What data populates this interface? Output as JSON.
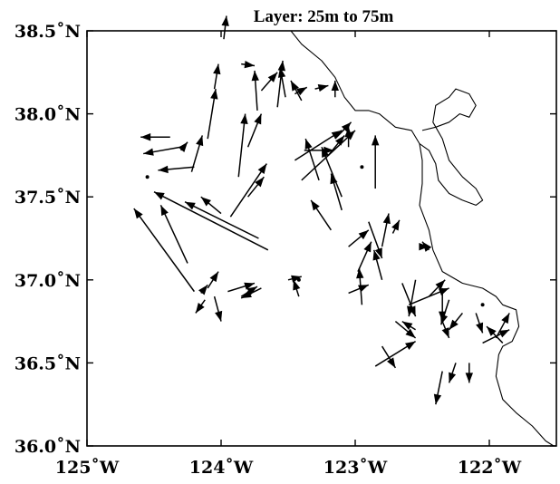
{
  "title": "Layer:  25m to 75m",
  "x_axis": {
    "range": [
      -125.0,
      -121.5
    ],
    "ticks": [
      {
        "value": -125,
        "label": "125˚W"
      },
      {
        "value": -124,
        "label": "124˚W"
      },
      {
        "value": -123,
        "label": "123˚W"
      },
      {
        "value": -122,
        "label": "122˚W"
      }
    ]
  },
  "y_axis": {
    "range": [
      36.0,
      38.5
    ],
    "ticks": [
      {
        "value": 36.0,
        "label": "36.0˚N"
      },
      {
        "value": 36.5,
        "label": "36.5˚N"
      },
      {
        "value": 37.0,
        "label": "37.0˚N"
      },
      {
        "value": 37.5,
        "label": "37.5˚N"
      },
      {
        "value": 38.0,
        "label": "38.0˚N"
      },
      {
        "value": 38.5,
        "label": "38.5˚N"
      }
    ]
  },
  "current_vectors": [
    {
      "lon": -123.98,
      "lat": 38.45,
      "u": 0.02,
      "v": 0.14
    },
    {
      "lon": -123.85,
      "lat": 38.3,
      "u": 0.1,
      "v": -0.01
    },
    {
      "lon": -123.7,
      "lat": 38.14,
      "u": 0.12,
      "v": 0.11
    },
    {
      "lon": -124.05,
      "lat": 38.15,
      "u": 0.03,
      "v": 0.15
    },
    {
      "lon": -123.73,
      "lat": 38.02,
      "u": -0.02,
      "v": 0.24
    },
    {
      "lon": -123.58,
      "lat": 38.04,
      "u": 0.04,
      "v": 0.28
    },
    {
      "lon": -123.52,
      "lat": 38.1,
      "u": -0.04,
      "v": 0.18
    },
    {
      "lon": -123.45,
      "lat": 38.12,
      "u": 0.09,
      "v": 0.04
    },
    {
      "lon": -123.4,
      "lat": 38.08,
      "u": -0.08,
      "v": 0.12
    },
    {
      "lon": -123.3,
      "lat": 38.15,
      "u": 0.1,
      "v": 0.02
    },
    {
      "lon": -123.15,
      "lat": 38.1,
      "u": 0.0,
      "v": 0.1
    },
    {
      "lon": -123.87,
      "lat": 37.62,
      "u": 0.05,
      "v": 0.38
    },
    {
      "lon": -123.8,
      "lat": 37.8,
      "u": 0.1,
      "v": 0.2
    },
    {
      "lon": -124.1,
      "lat": 37.85,
      "u": 0.06,
      "v": 0.3
    },
    {
      "lon": -124.22,
      "lat": 37.65,
      "u": 0.08,
      "v": 0.22
    },
    {
      "lon": -124.3,
      "lat": 37.78,
      "u": 0.05,
      "v": 0.05
    },
    {
      "lon": -124.38,
      "lat": 37.86,
      "u": -0.22,
      "v": 0.0
    },
    {
      "lon": -124.3,
      "lat": 37.8,
      "u": -0.28,
      "v": -0.04
    },
    {
      "lon": -124.2,
      "lat": 37.68,
      "u": -0.27,
      "v": -0.02
    },
    {
      "lon": -123.93,
      "lat": 37.38,
      "u": 0.27,
      "v": 0.32
    },
    {
      "lon": -123.8,
      "lat": 37.5,
      "u": 0.12,
      "v": 0.12
    },
    {
      "lon": -123.4,
      "lat": 37.6,
      "u": 0.4,
      "v": 0.3
    },
    {
      "lon": -123.45,
      "lat": 37.72,
      "u": 0.35,
      "v": 0.18
    },
    {
      "lon": -123.38,
      "lat": 37.78,
      "u": 0.22,
      "v": 0.0
    },
    {
      "lon": -123.27,
      "lat": 37.6,
      "u": -0.1,
      "v": 0.25
    },
    {
      "lon": -123.2,
      "lat": 37.75,
      "u": 0.12,
      "v": 0.12
    },
    {
      "lon": -123.15,
      "lat": 37.85,
      "u": 0.12,
      "v": 0.1
    },
    {
      "lon": -123.05,
      "lat": 37.8,
      "u": 0.0,
      "v": 0.12
    },
    {
      "lon": -123.1,
      "lat": 37.5,
      "u": -0.15,
      "v": 0.3
    },
    {
      "lon": -122.85,
      "lat": 37.55,
      "u": 0.0,
      "v": 0.32
    },
    {
      "lon": -123.18,
      "lat": 37.3,
      "u": -0.15,
      "v": 0.18
    },
    {
      "lon": -123.1,
      "lat": 37.42,
      "u": -0.08,
      "v": 0.22
    },
    {
      "lon": -123.05,
      "lat": 37.2,
      "u": 0.15,
      "v": 0.1
    },
    {
      "lon": -123.65,
      "lat": 37.18,
      "u": -0.85,
      "v": 0.35
    },
    {
      "lon": -123.72,
      "lat": 37.25,
      "u": -0.55,
      "v": 0.22
    },
    {
      "lon": -124.0,
      "lat": 37.4,
      "u": -0.15,
      "v": 0.1
    },
    {
      "lon": -124.25,
      "lat": 37.1,
      "u": -0.2,
      "v": 0.35
    },
    {
      "lon": -124.2,
      "lat": 36.93,
      "u": -0.45,
      "v": 0.5
    },
    {
      "lon": -124.15,
      "lat": 36.92,
      "u": 0.05,
      "v": 0.05
    },
    {
      "lon": -124.1,
      "lat": 36.95,
      "u": 0.08,
      "v": 0.1
    },
    {
      "lon": -124.05,
      "lat": 36.9,
      "u": 0.05,
      "v": -0.15
    },
    {
      "lon": -124.12,
      "lat": 36.88,
      "u": -0.07,
      "v": -0.08
    },
    {
      "lon": -123.95,
      "lat": 36.93,
      "u": 0.2,
      "v": 0.05
    },
    {
      "lon": -123.85,
      "lat": 36.9,
      "u": 0.12,
      "v": 0.06
    },
    {
      "lon": -123.7,
      "lat": 36.95,
      "u": -0.15,
      "v": -0.06
    },
    {
      "lon": -123.5,
      "lat": 37.0,
      "u": 0.1,
      "v": 0.02
    },
    {
      "lon": -123.42,
      "lat": 36.9,
      "u": -0.04,
      "v": 0.1
    },
    {
      "lon": -122.9,
      "lat": 37.35,
      "u": 0.1,
      "v": -0.22
    },
    {
      "lon": -122.8,
      "lat": 37.2,
      "u": 0.05,
      "v": 0.2
    },
    {
      "lon": -122.72,
      "lat": 37.28,
      "u": 0.05,
      "v": 0.08
    },
    {
      "lon": -122.5,
      "lat": 37.2,
      "u": 0.05,
      "v": 0.0
    },
    {
      "lon": -122.45,
      "lat": 37.18,
      "u": -0.05,
      "v": 0.05
    },
    {
      "lon": -122.98,
      "lat": 37.05,
      "u": 0.1,
      "v": 0.18
    },
    {
      "lon": -122.8,
      "lat": 37.0,
      "u": -0.06,
      "v": 0.18
    },
    {
      "lon": -122.65,
      "lat": 36.98,
      "u": 0.1,
      "v": -0.2
    },
    {
      "lon": -122.55,
      "lat": 37.0,
      "u": -0.05,
      "v": -0.22
    },
    {
      "lon": -122.6,
      "lat": 36.85,
      "u": 0.3,
      "v": 0.1
    },
    {
      "lon": -122.45,
      "lat": 36.9,
      "u": 0.12,
      "v": 0.1
    },
    {
      "lon": -122.35,
      "lat": 36.95,
      "u": 0.0,
      "v": -0.2
    },
    {
      "lon": -122.3,
      "lat": 36.88,
      "u": -0.06,
      "v": -0.15
    },
    {
      "lon": -122.2,
      "lat": 36.8,
      "u": -0.1,
      "v": -0.1
    },
    {
      "lon": -122.1,
      "lat": 36.8,
      "u": 0.05,
      "v": -0.12
    },
    {
      "lon": -122.95,
      "lat": 36.85,
      "u": -0.02,
      "v": 0.22
    },
    {
      "lon": -123.05,
      "lat": 36.92,
      "u": 0.15,
      "v": 0.05
    },
    {
      "lon": -122.7,
      "lat": 36.75,
      "u": 0.15,
      "v": -0.1
    },
    {
      "lon": -122.55,
      "lat": 36.7,
      "u": -0.1,
      "v": 0.05
    },
    {
      "lon": -122.35,
      "lat": 36.75,
      "u": 0.05,
      "v": -0.1
    },
    {
      "lon": -122.35,
      "lat": 36.45,
      "u": -0.05,
      "v": -0.2
    },
    {
      "lon": -122.25,
      "lat": 36.5,
      "u": -0.05,
      "v": -0.12
    },
    {
      "lon": -122.15,
      "lat": 36.5,
      "u": 0.0,
      "v": -0.12
    },
    {
      "lon": -122.8,
      "lat": 36.6,
      "u": 0.1,
      "v": -0.13
    },
    {
      "lon": -122.85,
      "lat": 36.48,
      "u": 0.3,
      "v": 0.15
    },
    {
      "lon": -122.05,
      "lat": 36.62,
      "u": 0.2,
      "v": 0.08
    },
    {
      "lon": -121.95,
      "lat": 36.65,
      "u": 0.1,
      "v": 0.15
    },
    {
      "lon": -121.9,
      "lat": 36.62,
      "u": -0.12,
      "v": 0.1
    }
  ],
  "station_dots": [
    {
      "lon": -124.55,
      "lat": 37.62
    },
    {
      "lon": -123.42,
      "lat": 37.0
    },
    {
      "lon": -122.95,
      "lat": 37.68
    },
    {
      "lon": -122.05,
      "lat": 36.85
    }
  ],
  "coastline": [
    [
      -123.48,
      38.5
    ],
    [
      -123.4,
      38.42
    ],
    [
      -123.25,
      38.32
    ],
    [
      -123.15,
      38.22
    ],
    [
      -123.08,
      38.1
    ],
    [
      -123.0,
      38.02
    ],
    [
      -122.9,
      38.02
    ],
    [
      -122.82,
      38.0
    ],
    [
      -122.7,
      37.92
    ],
    [
      -122.58,
      37.9
    ],
    [
      -122.52,
      37.82
    ],
    [
      -122.5,
      37.72
    ],
    [
      -122.5,
      37.58
    ],
    [
      -122.52,
      37.45
    ],
    [
      -122.45,
      37.3
    ],
    [
      -122.42,
      37.18
    ],
    [
      -122.35,
      37.05
    ],
    [
      -122.2,
      36.98
    ],
    [
      -122.05,
      36.95
    ],
    [
      -121.95,
      36.9
    ],
    [
      -121.9,
      36.85
    ],
    [
      -121.8,
      36.82
    ],
    [
      -121.78,
      36.72
    ],
    [
      -121.83,
      36.63
    ],
    [
      -121.9,
      36.6
    ],
    [
      -121.93,
      36.55
    ],
    [
      -121.95,
      36.42
    ],
    [
      -121.9,
      36.28
    ],
    [
      -121.8,
      36.2
    ],
    [
      -121.68,
      36.12
    ],
    [
      -121.58,
      36.03
    ],
    [
      -121.52,
      36.0
    ]
  ],
  "bay_outline": [
    [
      -122.52,
      37.82
    ],
    [
      -122.45,
      37.78
    ],
    [
      -122.4,
      37.7
    ],
    [
      -122.38,
      37.6
    ],
    [
      -122.3,
      37.52
    ],
    [
      -122.2,
      37.48
    ],
    [
      -122.1,
      37.45
    ],
    [
      -122.05,
      37.48
    ],
    [
      -122.1,
      37.55
    ],
    [
      -122.2,
      37.62
    ],
    [
      -122.3,
      37.72
    ],
    [
      -122.35,
      37.85
    ],
    [
      -122.42,
      37.95
    ],
    [
      -122.4,
      38.05
    ],
    [
      -122.3,
      38.1
    ],
    [
      -122.25,
      38.15
    ],
    [
      -122.15,
      38.12
    ],
    [
      -122.1,
      38.05
    ],
    [
      -122.15,
      37.98
    ],
    [
      -122.22,
      38.0
    ],
    [
      -122.3,
      37.95
    ],
    [
      -122.4,
      37.92
    ],
    [
      -122.5,
      37.9
    ]
  ]
}
